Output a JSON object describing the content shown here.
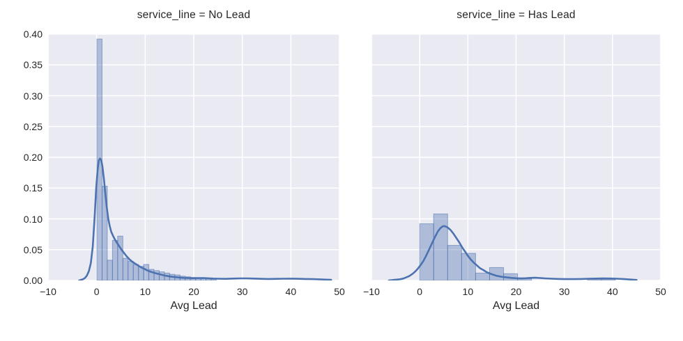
{
  "style": {
    "panel_bg": "#eaeaf2",
    "grid_color": "#ffffff",
    "bar_fill_rgb": "76,114,176",
    "bar_fill_alpha": 0.38,
    "bar_edge_alpha": 0.55,
    "kde_color": "#4c72b0",
    "text_color": "#262626"
  },
  "chart_data": [
    {
      "type": "histogram+kde",
      "title": "service_line = No Lead",
      "xlabel": "Avg Lead",
      "stat": "density",
      "grid": true,
      "xlim": [
        -10,
        50
      ],
      "ylim": [
        0,
        0.4
      ],
      "xticks": {
        "values": [
          -10,
          0,
          10,
          20,
          30,
          40,
          50
        ],
        "labels": [
          "−10",
          "0",
          "10",
          "20",
          "30",
          "40",
          "50"
        ]
      },
      "yticks": {
        "values": [
          0,
          0.05,
          0.1,
          0.15,
          0.2,
          0.25,
          0.3,
          0.35,
          0.4
        ],
        "labels": [
          "0.00",
          "0.05",
          "0.10",
          "0.15",
          "0.20",
          "0.25",
          "0.30",
          "0.35",
          "0.40"
        ],
        "show_labels": true
      },
      "bins": {
        "start": 0.05,
        "width": 1.07,
        "densities": [
          0.392,
          0.153,
          0.033,
          0.065,
          0.072,
          0.036,
          0.031,
          0.026,
          0.023,
          0.026,
          0.018,
          0.016,
          0.014,
          0.012,
          0.01,
          0.009,
          0.007,
          0.006,
          0.005,
          0.0045,
          0.004,
          0.0035,
          0.003
        ]
      },
      "kde": {
        "x": [
          -3.6,
          -3.2,
          -2.8,
          -2.4,
          -2.0,
          -1.6,
          -1.2,
          -0.8,
          -0.4,
          -0.1,
          0.2,
          0.45,
          0.7,
          0.95,
          1.2,
          1.5,
          1.8,
          2.1,
          2.4,
          2.7,
          3.0,
          3.4,
          3.8,
          4.2,
          4.7,
          5.2,
          5.7,
          6.2,
          6.8,
          7.4,
          8.0,
          8.6,
          9.2,
          9.8,
          10.5,
          11.2,
          12.0,
          13.0,
          14.0,
          15.0,
          16.0,
          17.0,
          18.0,
          19.0,
          20.0,
          21.0,
          22.0,
          23.0,
          24.0,
          25.0,
          26.5,
          28.0,
          29.5,
          31.0,
          32.5,
          34.0,
          35.5,
          37.0,
          38.5,
          40.0,
          41.5,
          43.0,
          44.5,
          46.0,
          47.2,
          48.3
        ],
        "y": [
          0.0,
          0.001,
          0.002,
          0.004,
          0.008,
          0.015,
          0.028,
          0.055,
          0.105,
          0.15,
          0.18,
          0.195,
          0.198,
          0.195,
          0.185,
          0.165,
          0.14,
          0.118,
          0.1,
          0.088,
          0.079,
          0.072,
          0.066,
          0.061,
          0.055,
          0.049,
          0.044,
          0.039,
          0.034,
          0.03,
          0.027,
          0.024,
          0.021,
          0.019,
          0.016,
          0.014,
          0.012,
          0.01,
          0.008,
          0.0065,
          0.0055,
          0.0048,
          0.0042,
          0.0038,
          0.0036,
          0.0038,
          0.004,
          0.0035,
          0.003,
          0.0028,
          0.0026,
          0.003,
          0.0034,
          0.0034,
          0.003,
          0.0026,
          0.0024,
          0.0026,
          0.0028,
          0.0029,
          0.0027,
          0.0024,
          0.0021,
          0.0018,
          0.0014,
          0.001
        ]
      }
    },
    {
      "type": "histogram+kde",
      "title": "service_line = Has Lead",
      "xlabel": "Avg Lead",
      "stat": "density",
      "grid": true,
      "xlim": [
        -10,
        50
      ],
      "ylim": [
        0,
        0.4
      ],
      "xticks": {
        "values": [
          -10,
          0,
          10,
          20,
          30,
          40,
          50
        ],
        "labels": [
          "−10",
          "0",
          "10",
          "20",
          "30",
          "40",
          "50"
        ]
      },
      "yticks": {
        "values": [
          0,
          0.05,
          0.1,
          0.15,
          0.2,
          0.25,
          0.3,
          0.35,
          0.4
        ],
        "labels": [],
        "show_labels": false
      },
      "bins": {
        "start": 0.0,
        "width": 2.9,
        "densities": [
          0.092,
          0.108,
          0.057,
          0.044,
          0.012,
          0.021,
          0.011,
          0.003,
          0,
          0,
          0,
          0,
          0.002,
          0.002
        ]
      },
      "kde": {
        "x": [
          -6.4,
          -5.8,
          -5.2,
          -4.6,
          -4.0,
          -3.4,
          -2.8,
          -2.2,
          -1.6,
          -1.0,
          -0.4,
          0.2,
          0.8,
          1.4,
          2.0,
          2.6,
          3.2,
          3.8,
          4.3,
          4.8,
          5.3,
          5.8,
          6.4,
          7.0,
          7.6,
          8.2,
          8.8,
          9.4,
          10.0,
          10.6,
          11.2,
          11.8,
          12.5,
          13.2,
          14.0,
          15.0,
          16.0,
          17.0,
          18.0,
          19.0,
          20.0,
          21.0,
          22.0,
          23.0,
          24.0,
          25.0,
          26.0,
          27.5,
          29.0,
          30.5,
          32.0,
          33.5,
          35.0,
          36.5,
          38.0,
          39.5,
          41.0,
          42.5,
          44.0,
          45.0
        ],
        "y": [
          0.0,
          0.0005,
          0.001,
          0.0015,
          0.002,
          0.003,
          0.005,
          0.007,
          0.01,
          0.014,
          0.019,
          0.025,
          0.032,
          0.041,
          0.051,
          0.061,
          0.071,
          0.08,
          0.085,
          0.088,
          0.088,
          0.086,
          0.082,
          0.076,
          0.069,
          0.062,
          0.054,
          0.047,
          0.04,
          0.034,
          0.029,
          0.025,
          0.02,
          0.017,
          0.013,
          0.01,
          0.0075,
          0.006,
          0.005,
          0.0042,
          0.0036,
          0.0033,
          0.0036,
          0.0042,
          0.0044,
          0.004,
          0.0034,
          0.0028,
          0.0024,
          0.0022,
          0.0022,
          0.0024,
          0.0028,
          0.0031,
          0.0033,
          0.0032,
          0.0028,
          0.0022,
          0.0014,
          0.0008
        ]
      }
    }
  ]
}
